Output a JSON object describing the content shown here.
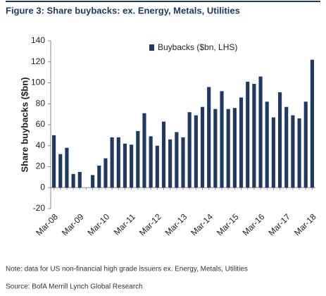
{
  "chart_data": {
    "type": "bar",
    "title": "Figure 3: Share buybacks: ex. Energy, Metals, Utilities",
    "y_label": "Share buybacks ($bn)",
    "categories": [
      "Mar-08",
      null,
      null,
      null,
      "Mar-09",
      null,
      null,
      null,
      "Mar-10",
      null,
      null,
      null,
      "Mar-11",
      null,
      null,
      null,
      "Mar-12",
      null,
      null,
      null,
      "Mar-13",
      null,
      null,
      null,
      "Mar-14",
      null,
      null,
      null,
      "Mar-15",
      null,
      null,
      null,
      "Mar-16",
      null,
      null,
      null,
      "Mar-17",
      null,
      null,
      null,
      "Mar-18"
    ],
    "series": [
      {
        "name": "Buybacks ($bn, LHS)",
        "color": "#1f3864",
        "values": [
          50,
          32,
          38,
          13,
          15,
          null,
          12,
          21,
          28,
          48,
          48,
          42,
          41,
          54,
          71,
          49,
          40,
          63,
          46,
          53,
          48,
          72,
          69,
          77,
          96,
          75,
          92,
          75,
          76,
          86,
          101,
          99,
          106,
          82,
          67,
          91,
          77,
          69,
          66,
          82,
          122
        ]
      }
    ],
    "ylim": [
      -20,
      140
    ],
    "yticks": [
      -20,
      0,
      20,
      40,
      60,
      80,
      100,
      120,
      140
    ],
    "grid": false,
    "legend": "top",
    "notes": [
      "Note: data for US non-financial high grade issuers ex. Energy, Metals, Utilities",
      "Source: BofA Merrill Lynch Global Research"
    ]
  }
}
